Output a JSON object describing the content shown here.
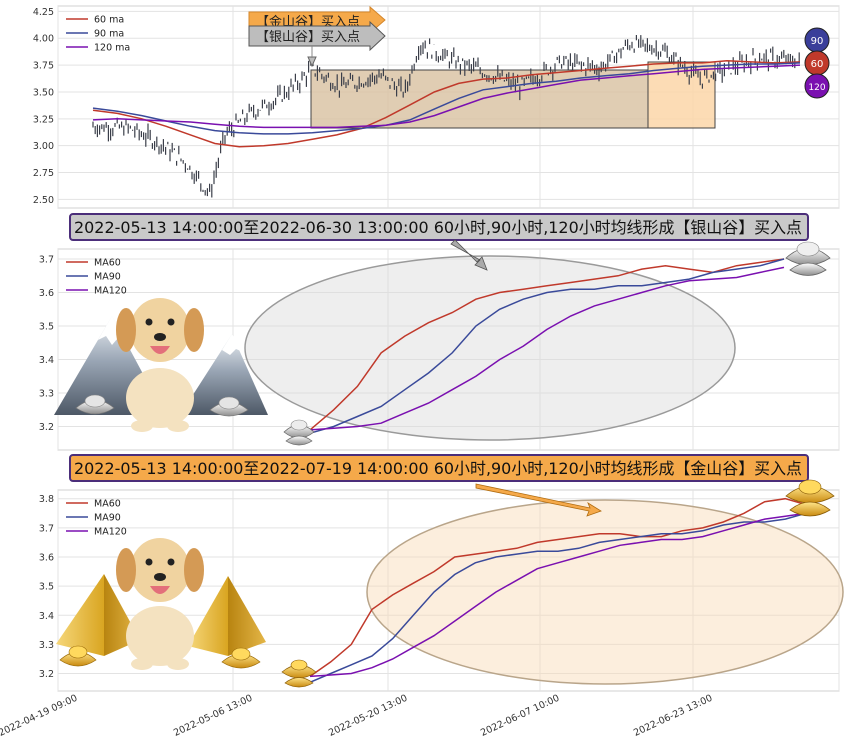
{
  "colors": {
    "ma60": "#c0392b",
    "ma90": "#3a4a9a",
    "ma120": "#7a10b0",
    "candle": "#3b3f4a",
    "silver_fill": "#c9c9c9",
    "gold_fill": "#f5a94a",
    "silver_box": "#d8c0a0",
    "gold_box": "#fbd6a8"
  },
  "badges": [
    "90",
    "60",
    "120"
  ],
  "chart_data": [
    {
      "type": "line",
      "title": "",
      "legend": [
        "60 ma",
        "90 ma",
        "120 ma"
      ],
      "legend_position": "top-left",
      "grid": true,
      "ylim": [
        2.42,
        4.3
      ],
      "yticks": [
        "2.50",
        "2.75",
        "3.00",
        "3.25",
        "3.50",
        "3.75",
        "4.00",
        "4.25"
      ],
      "series": [
        {
          "name": "60 ma",
          "values": [
            3.33,
            3.3,
            3.25,
            3.18,
            3.1,
            3.02,
            2.99,
            3.0,
            3.02,
            3.06,
            3.1,
            3.16,
            3.26,
            3.38,
            3.5,
            3.58,
            3.62,
            3.63,
            3.66,
            3.68,
            3.7,
            3.72,
            3.74,
            3.76,
            3.77,
            3.77,
            3.79,
            3.78,
            3.77,
            3.78
          ]
        },
        {
          "name": "90 ma",
          "values": [
            3.35,
            3.32,
            3.28,
            3.23,
            3.18,
            3.14,
            3.12,
            3.11,
            3.11,
            3.12,
            3.14,
            3.16,
            3.19,
            3.24,
            3.34,
            3.44,
            3.52,
            3.55,
            3.58,
            3.6,
            3.63,
            3.65,
            3.67,
            3.7,
            3.72,
            3.74,
            3.75,
            3.76,
            3.76,
            3.77
          ]
        },
        {
          "name": "120 ma",
          "values": [
            3.24,
            3.25,
            3.24,
            3.23,
            3.22,
            3.2,
            3.18,
            3.17,
            3.17,
            3.17,
            3.17,
            3.18,
            3.19,
            3.22,
            3.28,
            3.36,
            3.44,
            3.49,
            3.53,
            3.57,
            3.61,
            3.63,
            3.65,
            3.67,
            3.69,
            3.71,
            3.72,
            3.73,
            3.74,
            3.75
          ]
        }
      ],
      "annotations": [
        "【金山谷】买入点",
        "【银山谷】买入点"
      ]
    },
    {
      "type": "line",
      "title": "2022-05-13 14:00:00至2022-06-30 13:00:00 60小时,90小时,120小时均线形成【银山谷】买入点",
      "legend": [
        "MA60",
        "MA90",
        "MA120"
      ],
      "legend_position": "top-left",
      "grid": true,
      "ylim": [
        3.13,
        3.73
      ],
      "yticks": [
        "3.2",
        "3.3",
        "3.4",
        "3.5",
        "3.6",
        "3.7"
      ],
      "series": [
        {
          "name": "MA60",
          "values": [
            3.19,
            3.25,
            3.32,
            3.42,
            3.47,
            3.51,
            3.54,
            3.58,
            3.6,
            3.61,
            3.62,
            3.63,
            3.64,
            3.65,
            3.67,
            3.68,
            3.67,
            3.66,
            3.68,
            3.69,
            3.7
          ]
        },
        {
          "name": "MA90",
          "values": [
            3.18,
            3.2,
            3.23,
            3.26,
            3.31,
            3.36,
            3.42,
            3.5,
            3.55,
            3.58,
            3.6,
            3.61,
            3.61,
            3.62,
            3.62,
            3.63,
            3.64,
            3.66,
            3.67,
            3.68,
            3.7
          ]
        },
        {
          "name": "MA120",
          "values": [
            3.19,
            3.195,
            3.2,
            3.21,
            3.24,
            3.27,
            3.31,
            3.35,
            3.4,
            3.44,
            3.49,
            3.53,
            3.56,
            3.58,
            3.6,
            3.62,
            3.635,
            3.64,
            3.645,
            3.66,
            3.675
          ]
        }
      ]
    },
    {
      "type": "line",
      "title": "2022-05-13 14:00:00至2022-07-19 14:00:00 60小时,90小时,120小时均线形成【金山谷】买入点",
      "legend": [
        "MA60",
        "MA90",
        "MA120"
      ],
      "legend_position": "top-left",
      "grid": true,
      "ylim": [
        3.14,
        3.83
      ],
      "yticks": [
        "3.2",
        "3.3",
        "3.4",
        "3.5",
        "3.6",
        "3.7",
        "3.8"
      ],
      "xticks": [
        "2022-04-19 09:00",
        "2022-05-06 13:00",
        "2022-05-20 13:00",
        "2022-06-07 10:00",
        "2022-06-23 13:00"
      ],
      "series": [
        {
          "name": "MA60",
          "values": [
            3.19,
            3.24,
            3.3,
            3.42,
            3.47,
            3.51,
            3.55,
            3.6,
            3.61,
            3.62,
            3.63,
            3.65,
            3.66,
            3.67,
            3.68,
            3.68,
            3.67,
            3.67,
            3.69,
            3.7,
            3.72,
            3.75,
            3.79,
            3.8,
            3.78
          ]
        },
        {
          "name": "MA90",
          "values": [
            3.17,
            3.2,
            3.23,
            3.26,
            3.32,
            3.4,
            3.48,
            3.54,
            3.58,
            3.6,
            3.61,
            3.62,
            3.62,
            3.63,
            3.65,
            3.66,
            3.67,
            3.68,
            3.68,
            3.69,
            3.71,
            3.72,
            3.72,
            3.73,
            3.75
          ]
        },
        {
          "name": "MA120",
          "values": [
            3.19,
            3.195,
            3.2,
            3.22,
            3.25,
            3.29,
            3.33,
            3.38,
            3.43,
            3.48,
            3.52,
            3.56,
            3.58,
            3.6,
            3.62,
            3.64,
            3.65,
            3.66,
            3.66,
            3.67,
            3.69,
            3.71,
            3.73,
            3.74,
            3.75
          ]
        }
      ]
    }
  ]
}
